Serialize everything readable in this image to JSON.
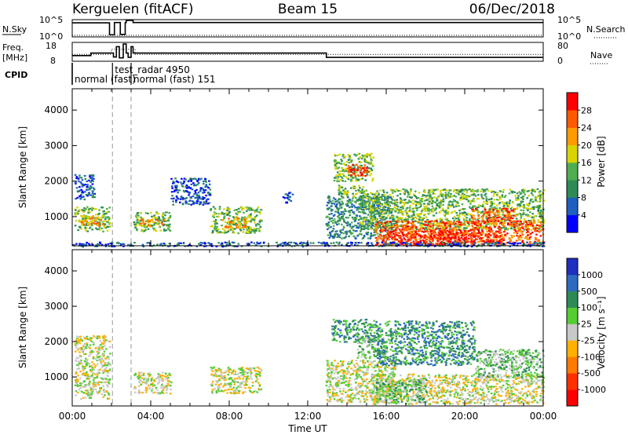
{
  "header": {
    "site": "Kerguelen (fitACF)",
    "beam": "Beam 15",
    "date": "06/Dec/2018"
  },
  "chart_data": [
    {
      "type": "line",
      "panel": "nsky",
      "left_label": "N.Sky",
      "right_label": "N.Search",
      "left_ticks": [
        "10^5",
        "10^0"
      ],
      "right_ticks": [
        "10^5",
        "10^0"
      ],
      "series": [
        {
          "values": [
            [
              0.0,
              4.2
            ],
            [
              1.9,
              4.2
            ],
            [
              1.9,
              0.2
            ],
            [
              2.15,
              0.2
            ],
            [
              2.15,
              4.3
            ],
            [
              2.45,
              4.3
            ],
            [
              2.45,
              0.3
            ],
            [
              2.7,
              0.3
            ],
            [
              2.7,
              4.3
            ],
            [
              2.75,
              4.3
            ],
            [
              2.75,
              5.0
            ],
            [
              3.1,
              5.0
            ],
            [
              3.1,
              4.3
            ],
            [
              24.0,
              4.3
            ]
          ]
        },
        {
          "values": [
            [
              0.0,
              0.0
            ],
            [
              24.0,
              0.0
            ]
          ]
        }
      ]
    },
    {
      "type": "line",
      "panel": "freq",
      "left_label": "Freq. [MHz]",
      "right_label": "Nave",
      "left_ticks": [
        "18",
        "8"
      ],
      "right_ticks": [
        "80",
        "0"
      ],
      "ylim": [
        8,
        18
      ],
      "series": [
        {
          "values": [
            [
              0.0,
              10.8
            ],
            [
              0.95,
              10.8
            ],
            [
              0.95,
              12.3
            ],
            [
              2.1,
              12.3
            ],
            [
              2.1,
              10.0
            ],
            [
              2.25,
              10.0
            ],
            [
              2.25,
              16.0
            ],
            [
              2.4,
              16.0
            ],
            [
              2.4,
              9.5
            ],
            [
              2.6,
              9.5
            ],
            [
              2.6,
              17.5
            ],
            [
              2.75,
              17.5
            ],
            [
              2.75,
              12.3
            ],
            [
              2.85,
              12.3
            ],
            [
              2.85,
              9.8
            ],
            [
              3.0,
              9.8
            ],
            [
              3.0,
              16.0
            ],
            [
              3.1,
              16.0
            ],
            [
              3.1,
              12.3
            ],
            [
              12.95,
              12.3
            ],
            [
              12.95,
              9.8
            ],
            [
              24.0,
              9.8
            ]
          ]
        },
        {
          "values": [
            [
              0.0,
              11.5
            ],
            [
              2.0,
              11.5
            ],
            [
              2.0,
              14.5
            ],
            [
              3.2,
              14.5
            ],
            [
              3.2,
              11.5
            ],
            [
              24.0,
              11.5
            ]
          ]
        }
      ]
    },
    {
      "type": "table",
      "panel": "cpid",
      "label": "CPID",
      "entries": [
        {
          "start": 0.0,
          "text": "normal (fast)"
        },
        {
          "start": 2.05,
          "text": "test_radar 4950"
        },
        {
          "start": 3.0,
          "text": "normal (fast) 151"
        }
      ]
    },
    {
      "type": "heatmap",
      "panel": "power",
      "ylabel": "Slant Range [km]",
      "xlim": [
        0,
        24
      ],
      "ylim": [
        180,
        4600
      ],
      "yticks": [
        1000,
        2000,
        3000,
        4000
      ],
      "colorbar": {
        "label": "Power [dB]",
        "ticks": [
          "4",
          "8",
          "12",
          "16",
          "20",
          "24",
          "28"
        ],
        "colors": [
          "#0000ff",
          "#1f5fbf",
          "#2e8b57",
          "#4fae4f",
          "#d8d400",
          "#ff9a00",
          "#ff5a00",
          "#ff0000"
        ]
      },
      "dashed_x": [
        2.05,
        3.0
      ],
      "regions": [
        {
          "t": [
            0.1,
            1.9
          ],
          "r": [
            600,
            1300
          ],
          "level": 3
        },
        {
          "t": [
            0.1,
            1.1
          ],
          "r": [
            1500,
            2200
          ],
          "level": 1
        },
        {
          "t": [
            0.4,
            1.6
          ],
          "r": [
            750,
            1050
          ],
          "level": 5
        },
        {
          "t": [
            3.1,
            5.0
          ],
          "r": [
            600,
            1150
          ],
          "level": 3
        },
        {
          "t": [
            3.3,
            4.6
          ],
          "r": [
            750,
            950
          ],
          "level": 5
        },
        {
          "t": [
            5.0,
            7.0
          ],
          "r": [
            1350,
            2100
          ],
          "level": 1
        },
        {
          "t": [
            7.0,
            9.6
          ],
          "r": [
            550,
            1300
          ],
          "level": 3
        },
        {
          "t": [
            7.6,
            8.8
          ],
          "r": [
            700,
            1000
          ],
          "level": 5
        },
        {
          "t": [
            10.7,
            11.2
          ],
          "r": [
            1400,
            1700
          ],
          "level": 1
        },
        {
          "t": [
            12.9,
            16.4
          ],
          "r": [
            400,
            1600
          ],
          "level": 2
        },
        {
          "t": [
            13.3,
            15.3
          ],
          "r": [
            2000,
            2800
          ],
          "level": 3
        },
        {
          "t": [
            14.0,
            15.0
          ],
          "r": [
            2150,
            2500
          ],
          "level": 7
        },
        {
          "t": [
            13.5,
            14.8
          ],
          "r": [
            1550,
            1900
          ],
          "level": 3
        },
        {
          "t": [
            14.6,
            24.0
          ],
          "r": [
            650,
            1800
          ],
          "level": 3
        },
        {
          "t": [
            15.4,
            24.0
          ],
          "r": [
            200,
            900
          ],
          "level": 6
        },
        {
          "t": [
            16.0,
            21.8
          ],
          "r": [
            250,
            650
          ],
          "level": 7
        },
        {
          "t": [
            20.3,
            22.6
          ],
          "r": [
            800,
            1250
          ],
          "level": 6
        },
        {
          "t": [
            0.0,
            24.0
          ],
          "r": [
            180,
            300
          ],
          "level": 1
        }
      ]
    },
    {
      "type": "heatmap",
      "panel": "velocity",
      "ylabel": "Slant Range [km]",
      "xlabel": "Time UT",
      "xlim": [
        0,
        24
      ],
      "ylim": [
        180,
        4600
      ],
      "yticks": [
        1000,
        2000,
        3000,
        4000
      ],
      "xticks": [
        "00:00",
        "04:00",
        "08:00",
        "12:00",
        "16:00",
        "20:00",
        "00:00"
      ],
      "colorbar": {
        "label": "Velocity [m s⁻¹]",
        "ticks": [
          "1000",
          "500",
          "100",
          "25",
          "-25",
          "-100",
          "-500",
          "-1000"
        ],
        "colors": [
          "#1f2fbf",
          "#2e6bbf",
          "#2e8b57",
          "#55cc33",
          "#c8c8c8",
          "#ffb000",
          "#ff7a00",
          "#ff3000",
          "#ff0000"
        ]
      },
      "dashed_x": [
        2.05,
        3.0
      ],
      "regions": [
        {
          "t": [
            0.1,
            1.9
          ],
          "r": [
            400,
            2200
          ],
          "level": 4
        },
        {
          "t": [
            3.1,
            5.0
          ],
          "r": [
            550,
            1150
          ],
          "level": 4
        },
        {
          "t": [
            7.0,
            9.6
          ],
          "r": [
            550,
            1300
          ],
          "level": 4
        },
        {
          "t": [
            12.9,
            16.5
          ],
          "r": [
            300,
            1500
          ],
          "level": 4
        },
        {
          "t": [
            13.2,
            15.5
          ],
          "r": [
            2000,
            2650
          ],
          "level": 2
        },
        {
          "t": [
            14.5,
            16.0
          ],
          "r": [
            1550,
            2150
          ],
          "level": 3
        },
        {
          "t": [
            15.5,
            20.5
          ],
          "r": [
            1350,
            2600
          ],
          "level": 2
        },
        {
          "t": [
            15.2,
            24.0
          ],
          "r": [
            250,
            1100
          ],
          "level": 4
        },
        {
          "t": [
            15.4,
            18.0
          ],
          "r": [
            300,
            950
          ],
          "level": 3
        },
        {
          "t": [
            20.5,
            24.0
          ],
          "r": [
            1000,
            1800
          ],
          "level": 3
        }
      ]
    }
  ]
}
